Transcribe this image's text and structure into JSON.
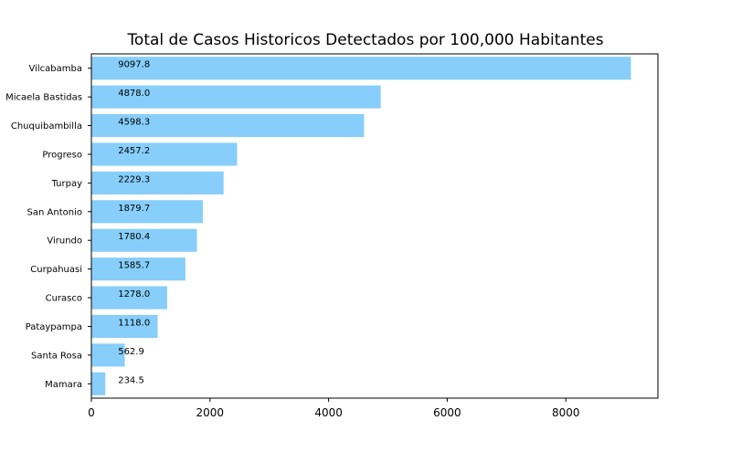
{
  "chart_data": {
    "type": "bar",
    "orientation": "horizontal",
    "title": "Total de Casos Historicos Detectados por 100,000 Habitantes",
    "xlabel": "",
    "ylabel": "",
    "categories": [
      "Vilcabamba",
      "Micaela Bastidas",
      "Chuquibambilla",
      "Progreso",
      "Turpay",
      "San Antonio",
      "Virundo",
      "Curpahuasi",
      "Curasco",
      "Pataypampa",
      "Santa Rosa",
      "Mamara"
    ],
    "values": [
      9097.8,
      4878.0,
      4598.3,
      2457.2,
      2229.3,
      1879.7,
      1780.4,
      1585.7,
      1278.0,
      1118.0,
      562.9,
      234.5
    ],
    "value_labels": [
      "9097.8",
      "4878.0",
      "4598.3",
      "2457.2",
      "2229.3",
      "1879.7",
      "1780.4",
      "1585.7",
      "1278.0",
      "1118.0",
      "562.9",
      "234.5"
    ],
    "xlim": [
      0,
      9552.7
    ],
    "xticks": [
      0,
      2000,
      4000,
      6000,
      8000
    ],
    "xtick_labels": [
      "0",
      "2000",
      "4000",
      "6000",
      "8000"
    ],
    "label_anchor_value": 450,
    "grid": false,
    "legend": "none",
    "bar_color": "#87CEFA"
  }
}
